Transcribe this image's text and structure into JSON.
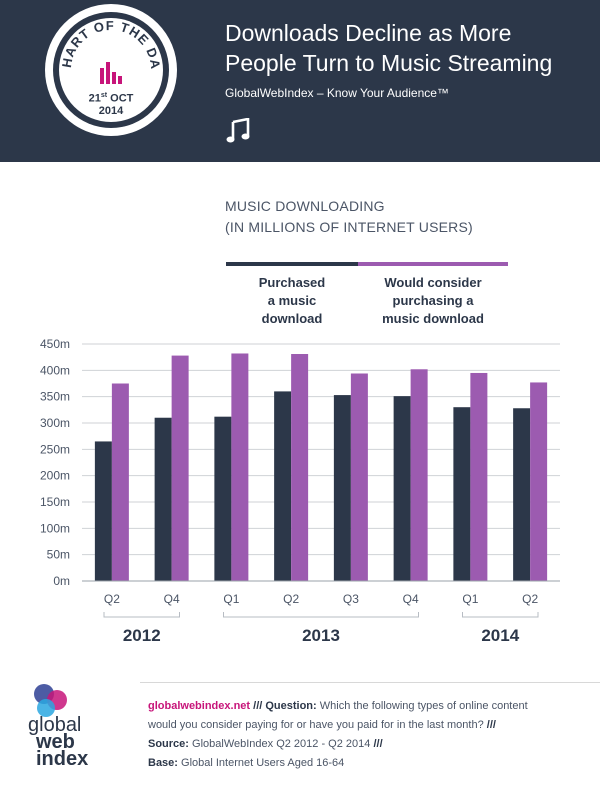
{
  "header": {
    "badge_text": "CHART OF THE DAY",
    "badge_date_day": "21",
    "badge_date_suffix": "st",
    "badge_date_month": "OCT",
    "badge_date_year": "2014",
    "title_line1": "Downloads Decline as More",
    "title_line2": "People Turn to Music Streaming",
    "subtitle": "GlobalWebIndex – Know Your Audience™",
    "icon": "music-note-icon"
  },
  "colors": {
    "navy": "#2c3749",
    "purple": "#9c5bb0",
    "magenta": "#c7157a"
  },
  "chart_data": {
    "type": "bar",
    "title_line1": "MUSIC DOWNLOADING",
    "title_line2": "(IN MILLIONS OF INTERNET USERS)",
    "categories": [
      "Q2",
      "Q4",
      "Q1",
      "Q2",
      "Q3",
      "Q4",
      "Q1",
      "Q2"
    ],
    "year_groups": [
      {
        "label": "2012",
        "count": 2
      },
      {
        "label": "2013",
        "count": 4
      },
      {
        "label": "2014",
        "count": 2
      }
    ],
    "series": [
      {
        "name": "Purchased a music download",
        "color": "#2c3749",
        "values": [
          265,
          310,
          312,
          360,
          353,
          351,
          330,
          328
        ]
      },
      {
        "name": "Would consider purchasing a music download",
        "color": "#9c5bb0",
        "values": [
          375,
          428,
          432,
          431,
          394,
          402,
          395,
          377
        ]
      }
    ],
    "yticks": [
      "0m",
      "50m",
      "100m",
      "150m",
      "200m",
      "250m",
      "300m",
      "350m",
      "400m",
      "450m"
    ],
    "ylim": [
      0,
      450
    ],
    "grid": true
  },
  "legend": {
    "series1_line1": "Purchased",
    "series1_line2": "a music",
    "series1_line3": "download",
    "series2_line1": "Would consider",
    "series2_line2": "purchasing a",
    "series2_line3": "music download"
  },
  "footer": {
    "logo_line1": "global",
    "logo_line2": "web",
    "logo_line3": "index",
    "link": "globalwebindex.net",
    "sep1": " /// ",
    "question_label": "Question:",
    "question": " Which the following types of online content would you consider paying for or have you paid for in the last month? ",
    "sep2": "/// ",
    "source_label": "Source:",
    "source": " GlobalWebIndex Q2 2012 - Q2 2014 ",
    "sep3": "///",
    "base_label": "Base:",
    "base": "  Global Internet Users Aged 16-64"
  }
}
